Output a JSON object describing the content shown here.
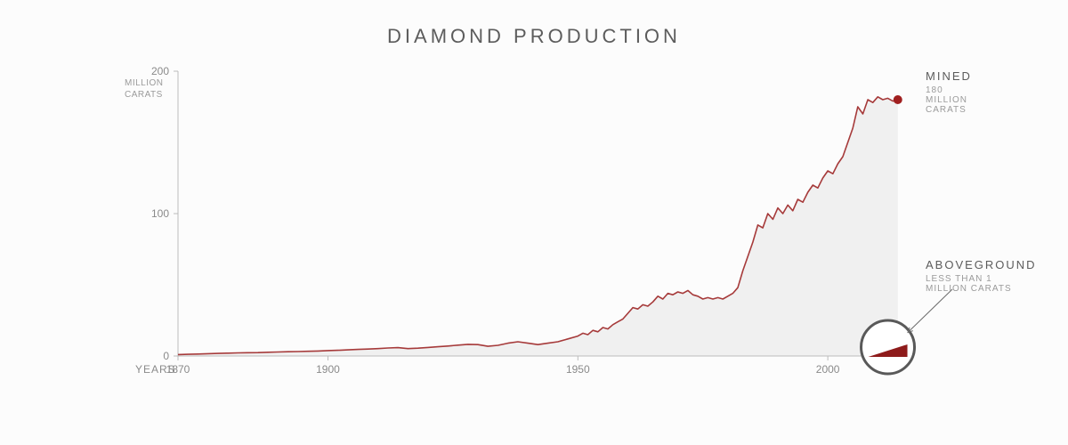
{
  "title": "DIAMOND PRODUCTION",
  "chart": {
    "type": "area",
    "background_color": "#fcfcfc",
    "area_fill_color": "#f0f0f0",
    "line_color": "#a63a3a",
    "line_width": 1.6,
    "marker_color": "#a01f1f",
    "marker_radius": 5,
    "axis_color": "#bcbcbc",
    "text_color": "#8a8a8a",
    "xlim": [
      1870,
      2016
    ],
    "ylim": [
      0,
      200
    ],
    "y_ticks": [
      0,
      100,
      200
    ],
    "y_unit_label": "MILLION\nCARATS",
    "x_ticks": [
      1870,
      1900,
      1950,
      2000
    ],
    "x_axis_title": "YEARS",
    "series_mined": {
      "name": "MINED",
      "sub": "180 MILLION CARATS",
      "end_value": 180,
      "points": [
        [
          1870,
          1
        ],
        [
          1872,
          1.2
        ],
        [
          1874,
          1.4
        ],
        [
          1876,
          1.6
        ],
        [
          1878,
          1.8
        ],
        [
          1880,
          2
        ],
        [
          1882,
          2.2
        ],
        [
          1884,
          2.3
        ],
        [
          1886,
          2.4
        ],
        [
          1888,
          2.6
        ],
        [
          1890,
          2.8
        ],
        [
          1892,
          3
        ],
        [
          1894,
          3.1
        ],
        [
          1896,
          3.3
        ],
        [
          1898,
          3.5
        ],
        [
          1900,
          3.8
        ],
        [
          1902,
          4
        ],
        [
          1904,
          4.3
        ],
        [
          1906,
          4.6
        ],
        [
          1908,
          4.9
        ],
        [
          1910,
          5.2
        ],
        [
          1912,
          5.6
        ],
        [
          1914,
          5.9
        ],
        [
          1916,
          5.2
        ],
        [
          1918,
          5.5
        ],
        [
          1920,
          6
        ],
        [
          1922,
          6.5
        ],
        [
          1924,
          7
        ],
        [
          1926,
          7.6
        ],
        [
          1928,
          8.2
        ],
        [
          1930,
          8
        ],
        [
          1932,
          6.8
        ],
        [
          1934,
          7.5
        ],
        [
          1936,
          9
        ],
        [
          1938,
          10
        ],
        [
          1940,
          9
        ],
        [
          1942,
          8
        ],
        [
          1944,
          9
        ],
        [
          1946,
          10
        ],
        [
          1948,
          12
        ],
        [
          1950,
          14
        ],
        [
          1951,
          16
        ],
        [
          1952,
          15
        ],
        [
          1953,
          18
        ],
        [
          1954,
          17
        ],
        [
          1955,
          20
        ],
        [
          1956,
          19
        ],
        [
          1957,
          22
        ],
        [
          1958,
          24
        ],
        [
          1959,
          26
        ],
        [
          1960,
          30
        ],
        [
          1961,
          34
        ],
        [
          1962,
          33
        ],
        [
          1963,
          36
        ],
        [
          1964,
          35
        ],
        [
          1965,
          38
        ],
        [
          1966,
          42
        ],
        [
          1967,
          40
        ],
        [
          1968,
          44
        ],
        [
          1969,
          43
        ],
        [
          1970,
          45
        ],
        [
          1971,
          44
        ],
        [
          1972,
          46
        ],
        [
          1973,
          43
        ],
        [
          1974,
          42
        ],
        [
          1975,
          40
        ],
        [
          1976,
          41
        ],
        [
          1977,
          40
        ],
        [
          1978,
          41
        ],
        [
          1979,
          40
        ],
        [
          1980,
          42
        ],
        [
          1981,
          44
        ],
        [
          1982,
          48
        ],
        [
          1983,
          60
        ],
        [
          1984,
          70
        ],
        [
          1985,
          80
        ],
        [
          1986,
          92
        ],
        [
          1987,
          90
        ],
        [
          1988,
          100
        ],
        [
          1989,
          96
        ],
        [
          1990,
          104
        ],
        [
          1991,
          100
        ],
        [
          1992,
          106
        ],
        [
          1993,
          102
        ],
        [
          1994,
          110
        ],
        [
          1995,
          108
        ],
        [
          1996,
          115
        ],
        [
          1997,
          120
        ],
        [
          1998,
          118
        ],
        [
          1999,
          125
        ],
        [
          2000,
          130
        ],
        [
          2001,
          128
        ],
        [
          2002,
          135
        ],
        [
          2003,
          140
        ],
        [
          2004,
          150
        ],
        [
          2005,
          160
        ],
        [
          2006,
          175
        ],
        [
          2007,
          170
        ],
        [
          2008,
          180
        ],
        [
          2009,
          178
        ],
        [
          2010,
          182
        ],
        [
          2011,
          180
        ],
        [
          2012,
          181
        ],
        [
          2013,
          179
        ],
        [
          2014,
          180
        ]
      ]
    },
    "callout_mined": {
      "label": "MINED",
      "sub": "180 MILLION CARATS"
    },
    "callout_above": {
      "label": "ABOVEGROUND",
      "sub": "LESS THAN 1 MILLION CARATS"
    },
    "inset_circle": {
      "stroke_color": "#595959",
      "stroke_width": 3,
      "radius": 30,
      "wedge_fill": "#8e1b1b",
      "wedge_points": [
        [
          -22,
          11
        ],
        [
          22,
          -3
        ],
        [
          22,
          11
        ]
      ]
    },
    "arrow_color": "#6a6a6a"
  }
}
